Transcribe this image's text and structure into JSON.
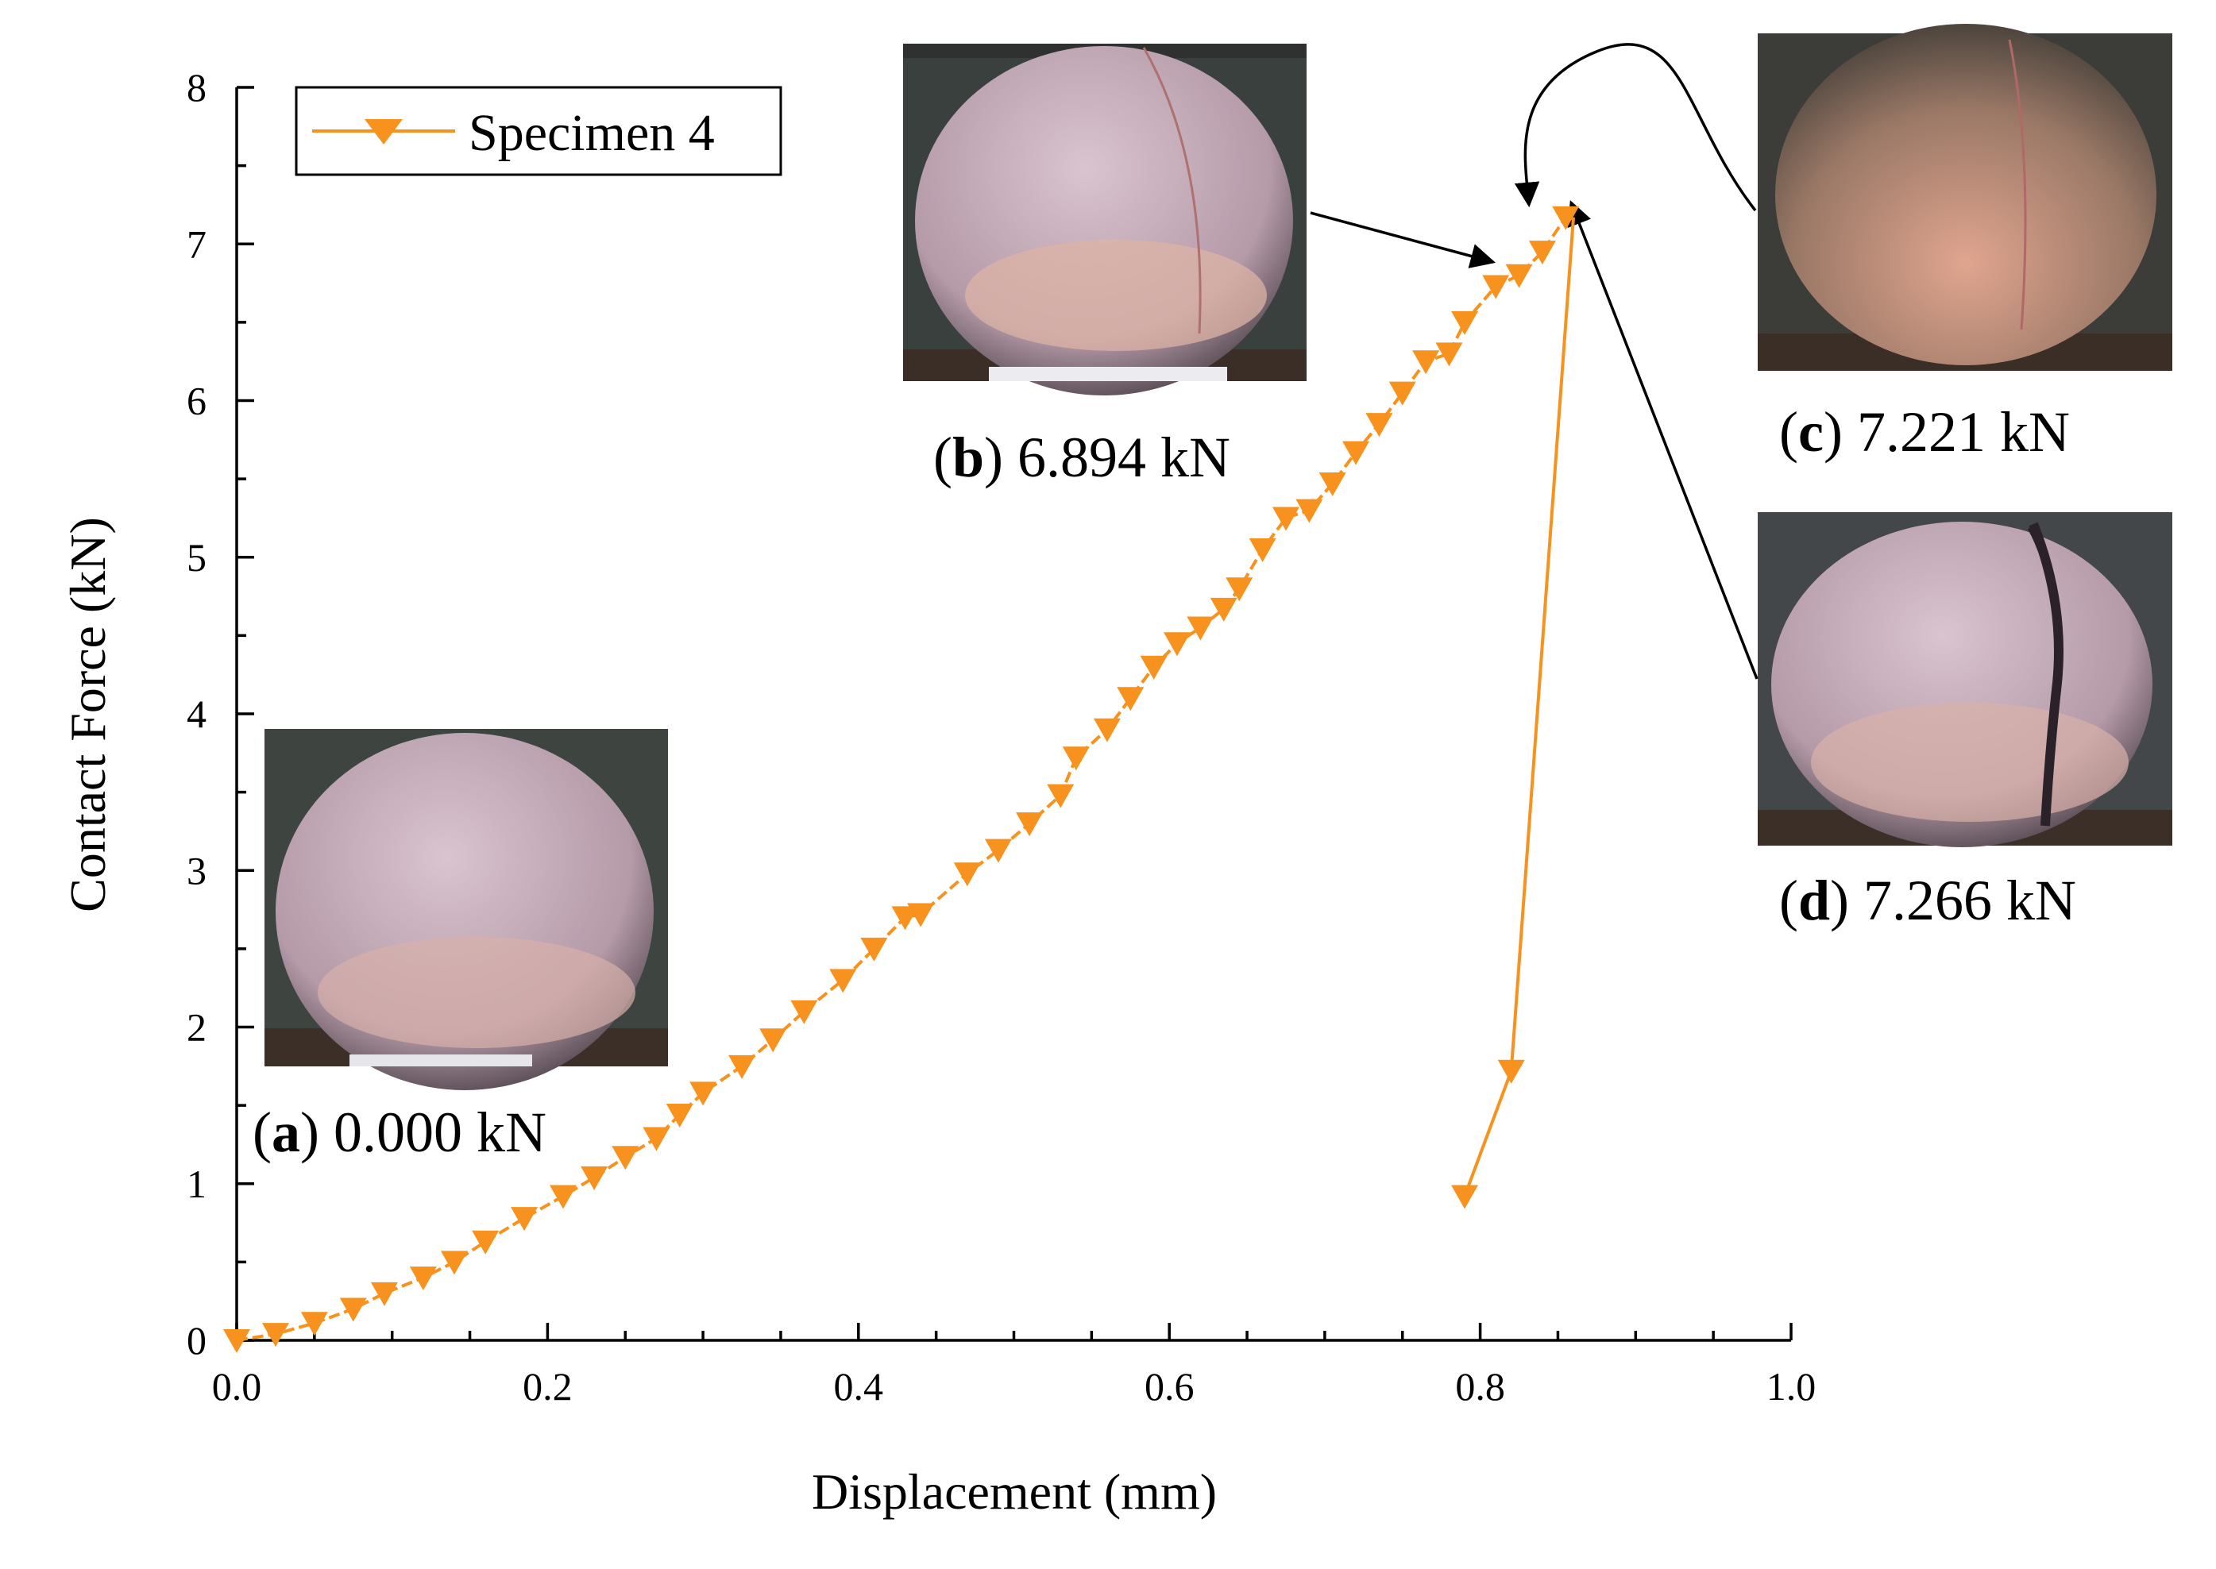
{
  "chart_data": {
    "type": "line",
    "xlabel": "Displacement (mm)",
    "ylabel": "Contact Force (kN)",
    "xlim": [
      0,
      1.0
    ],
    "ylim": [
      0,
      8
    ],
    "xticks": [
      "0.0",
      "0.2",
      "0.4",
      "0.6",
      "0.8",
      "1.0"
    ],
    "yticks": [
      "0",
      "1",
      "2",
      "3",
      "4",
      "5",
      "6",
      "7",
      "8"
    ],
    "legend": {
      "placement": "top-left",
      "entries": [
        "Specimen 4"
      ]
    },
    "color": "#f7921e",
    "series": [
      {
        "name": "Specimen 4",
        "marker": "triangle-down",
        "loading": {
          "x": [
            0.0,
            0.025,
            0.05,
            0.075,
            0.095,
            0.12,
            0.14,
            0.16,
            0.185,
            0.21,
            0.23,
            0.25,
            0.27,
            0.285,
            0.3,
            0.325,
            0.345,
            0.365,
            0.39,
            0.41,
            0.43,
            0.44,
            0.47,
            0.49,
            0.51,
            0.53,
            0.54,
            0.56,
            0.575,
            0.59,
            0.605,
            0.62,
            0.635,
            0.645,
            0.66,
            0.675,
            0.69,
            0.705,
            0.72,
            0.735,
            0.75,
            0.765,
            0.78,
            0.79,
            0.81,
            0.825,
            0.84,
            0.855
          ],
          "y": [
            0.0,
            0.04,
            0.11,
            0.2,
            0.3,
            0.4,
            0.5,
            0.63,
            0.78,
            0.92,
            1.04,
            1.17,
            1.29,
            1.44,
            1.58,
            1.75,
            1.92,
            2.1,
            2.3,
            2.5,
            2.7,
            2.72,
            2.98,
            3.13,
            3.3,
            3.48,
            3.72,
            3.9,
            4.1,
            4.3,
            4.45,
            4.55,
            4.67,
            4.8,
            5.05,
            5.25,
            5.3,
            5.47,
            5.67,
            5.85,
            6.05,
            6.25,
            6.3,
            6.5,
            6.73,
            6.8,
            6.95,
            7.17
          ]
        },
        "unloading": {
          "x": [
            0.86,
            0.82,
            0.79
          ],
          "y": [
            7.17,
            1.72,
            0.92
          ]
        }
      }
    ],
    "annotations": [
      {
        "letter": "a",
        "value": "0.000",
        "unit": "kN"
      },
      {
        "letter": "b",
        "value": "6.894",
        "unit": "kN"
      },
      {
        "letter": "c",
        "value": "7.221",
        "unit": "kN"
      },
      {
        "letter": "d",
        "value": "7.266",
        "unit": "kN"
      }
    ]
  }
}
